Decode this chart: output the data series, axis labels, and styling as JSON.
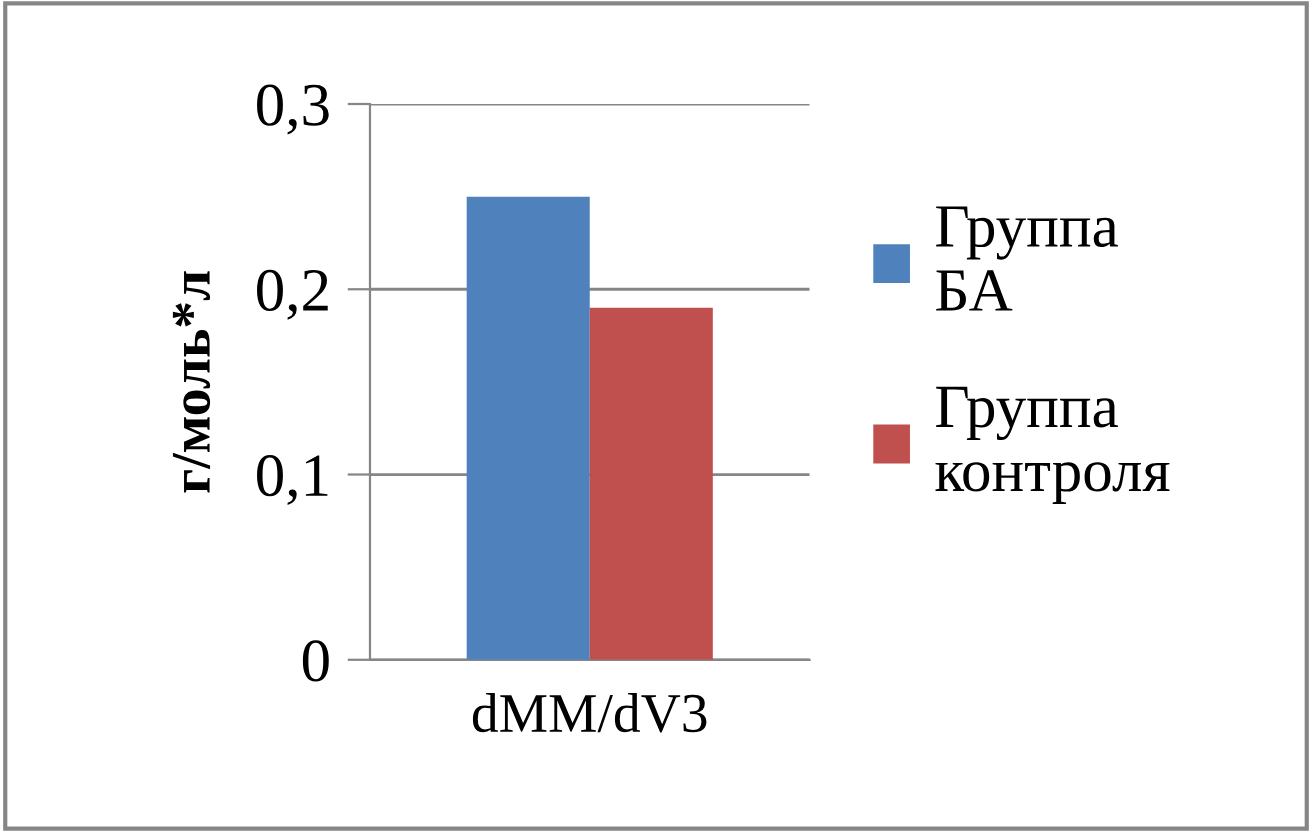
{
  "chart_data": {
    "type": "bar",
    "ylabel": "г/моль*л",
    "categories": [
      "dMM/dV3"
    ],
    "series": [
      {
        "name": "Группа БА",
        "color": "#4f81bd",
        "values": [
          0.25
        ]
      },
      {
        "name": "Группа контроля",
        "color": "#c0504d",
        "values": [
          0.19
        ]
      }
    ],
    "ylim": [
      0,
      0.3
    ],
    "yticks": [
      0,
      {
        "value": 0.1,
        "label": "0,1"
      },
      {
        "value": 0.2,
        "label": "0,2"
      },
      {
        "value": 0.3,
        "label": "0,3"
      }
    ],
    "grid": "y",
    "legend": "right"
  }
}
